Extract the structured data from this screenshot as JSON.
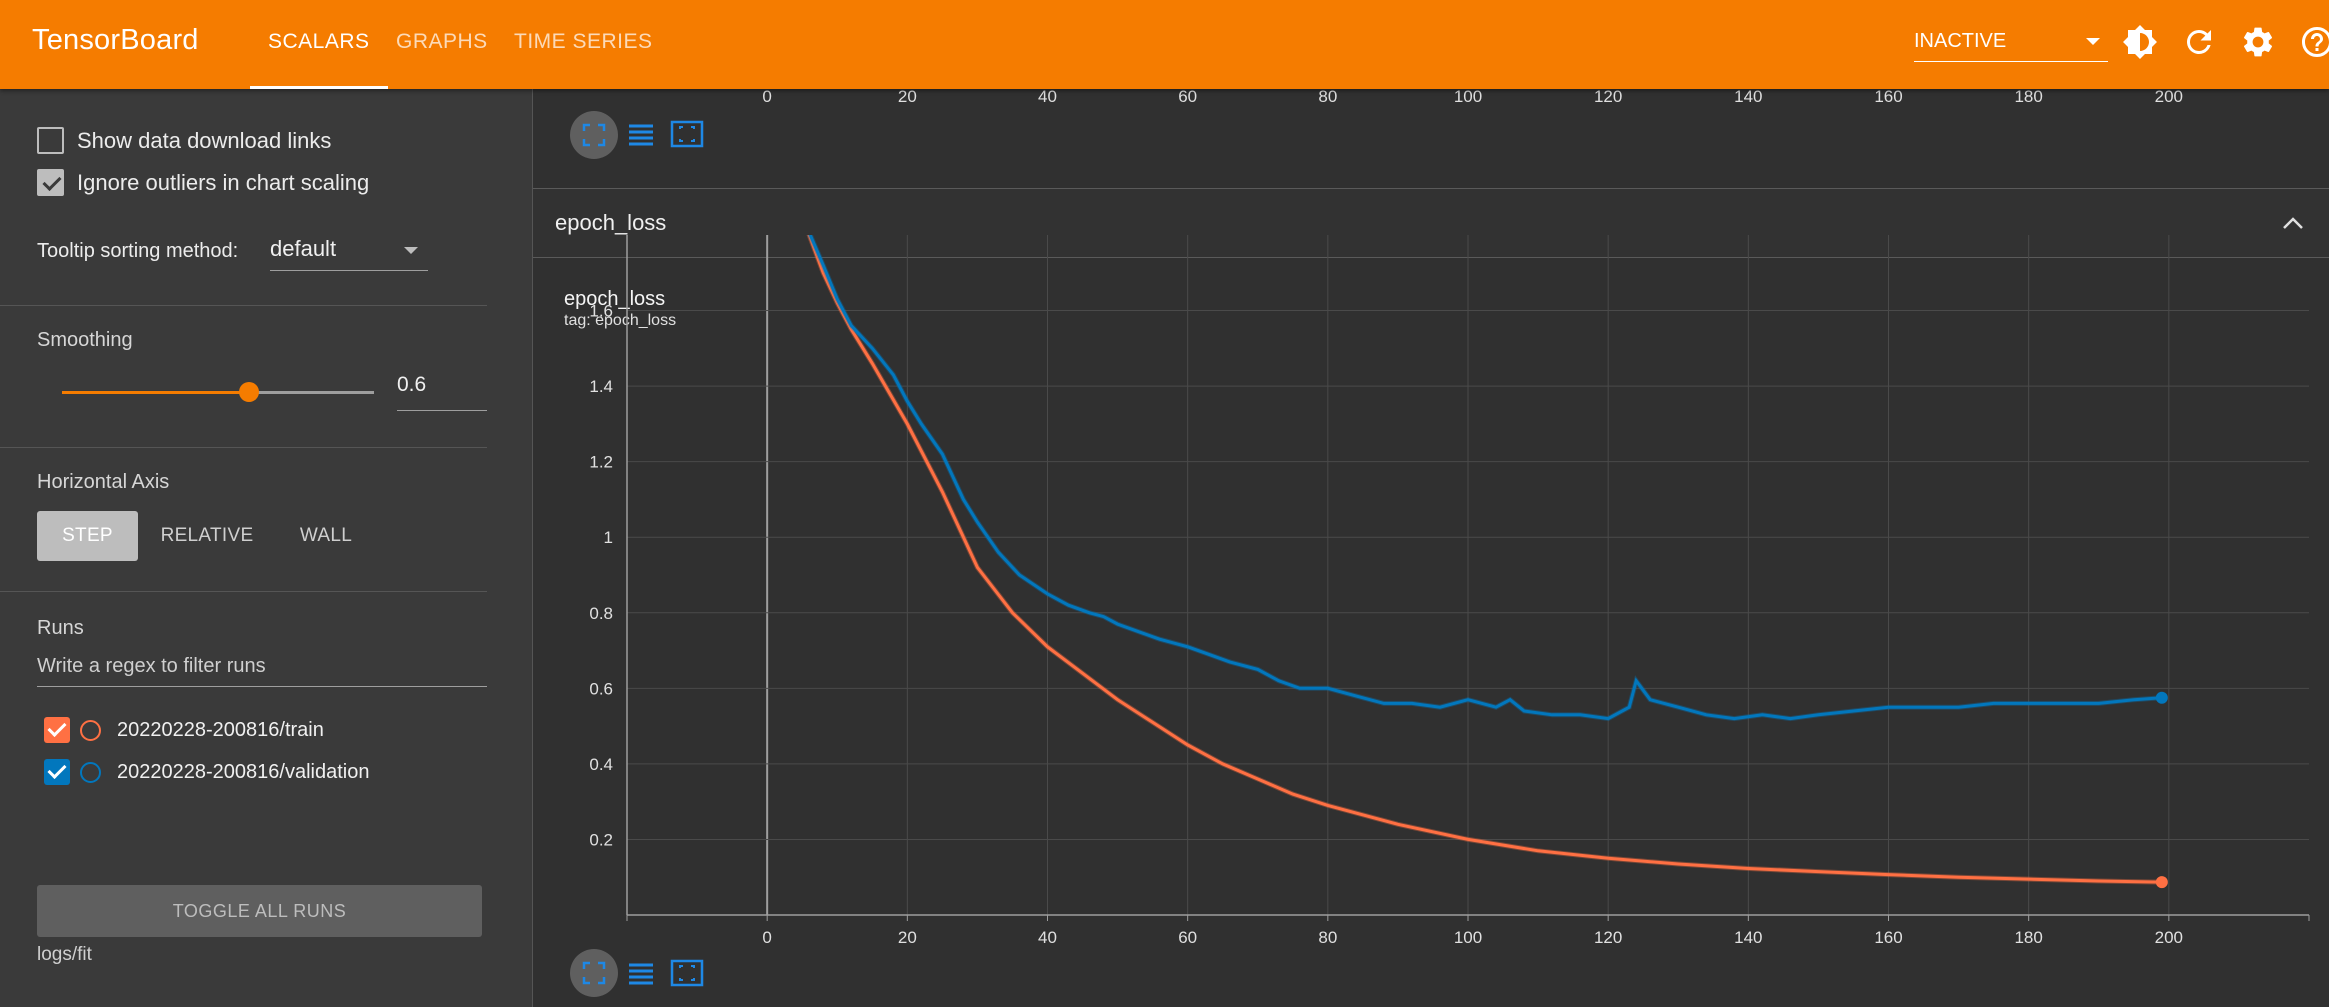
{
  "app": {
    "title": "TensorBoard",
    "nav_tabs": [
      {
        "label": "SCALARS",
        "active": true
      },
      {
        "label": "GRAPHS",
        "active": false
      },
      {
        "label": "TIME SERIES",
        "active": false
      }
    ],
    "status_select": "INACTIVE",
    "accent_color": "#f57c00",
    "icons": [
      "brightness-icon",
      "refresh-icon",
      "settings-icon",
      "help-icon"
    ]
  },
  "sidebar": {
    "show_download_links": {
      "label": "Show data download links",
      "checked": false
    },
    "ignore_outliers": {
      "label": "Ignore outliers in chart scaling",
      "checked": true
    },
    "tooltip_sorting": {
      "label": "Tooltip sorting method:",
      "value": "default"
    },
    "smoothing": {
      "label": "Smoothing",
      "value": "0.6",
      "fraction": 0.6
    },
    "horizontal_axis": {
      "label": "Horizontal Axis",
      "options": [
        {
          "label": "STEP",
          "active": true
        },
        {
          "label": "RELATIVE",
          "active": false
        },
        {
          "label": "WALL",
          "active": false
        }
      ]
    },
    "runs": {
      "label": "Runs",
      "filter_placeholder": "Write a regex to filter runs",
      "items": [
        {
          "label": "20220228-200816/train",
          "color": "#ff7043",
          "checked": true
        },
        {
          "label": "20220228-200816/validation",
          "color": "#0277bd",
          "checked": true
        }
      ],
      "toggle_all_label": "TOGGLE ALL RUNS",
      "log_dir": "logs/fit"
    }
  },
  "main": {
    "top_axis_ticks": [
      "0",
      "20",
      "40",
      "60",
      "80",
      "100",
      "120",
      "140",
      "160",
      "180",
      "200"
    ],
    "card_header": "epoch_loss",
    "chart_title": "epoch_loss",
    "chart_tag": "tag: epoch_loss"
  },
  "chart_data": {
    "type": "line",
    "title": "epoch_loss",
    "xlabel": "",
    "ylabel": "",
    "xlim": [
      -20,
      220
    ],
    "ylim": [
      0,
      1.8
    ],
    "x_ticks": [
      0,
      20,
      40,
      60,
      80,
      100,
      120,
      140,
      160,
      180,
      200
    ],
    "y_ticks": [
      0.2,
      0.4,
      0.6,
      0.8,
      1,
      1.2,
      1.4,
      1.6
    ],
    "grid": true,
    "series": [
      {
        "name": "20220228-200816/train",
        "color": "#ff7043",
        "x": [
          5,
          8,
          10,
          12,
          15,
          20,
          25,
          30,
          35,
          40,
          45,
          50,
          55,
          60,
          65,
          70,
          75,
          80,
          90,
          100,
          110,
          120,
          130,
          140,
          150,
          160,
          170,
          180,
          190,
          199
        ],
        "y": [
          1.85,
          1.7,
          1.62,
          1.55,
          1.46,
          1.3,
          1.12,
          0.92,
          0.8,
          0.71,
          0.64,
          0.57,
          0.51,
          0.45,
          0.4,
          0.36,
          0.32,
          0.29,
          0.24,
          0.2,
          0.17,
          0.15,
          0.135,
          0.123,
          0.115,
          0.107,
          0.1,
          0.095,
          0.09,
          0.087
        ]
      },
      {
        "name": "20220228-200816/validation",
        "color": "#0277bd",
        "x": [
          5,
          8,
          10,
          12,
          15,
          18,
          20,
          22,
          25,
          28,
          30,
          33,
          36,
          40,
          43,
          46,
          48,
          50,
          53,
          56,
          60,
          63,
          66,
          70,
          73,
          76,
          80,
          84,
          88,
          92,
          96,
          100,
          104,
          106,
          108,
          112,
          116,
          120,
          123,
          124,
          126,
          130,
          134,
          138,
          142,
          146,
          150,
          155,
          160,
          165,
          170,
          175,
          180,
          185,
          190,
          195,
          199
        ],
        "y": [
          1.85,
          1.72,
          1.63,
          1.56,
          1.5,
          1.43,
          1.36,
          1.3,
          1.22,
          1.1,
          1.04,
          0.96,
          0.9,
          0.85,
          0.82,
          0.8,
          0.79,
          0.77,
          0.75,
          0.73,
          0.71,
          0.69,
          0.67,
          0.65,
          0.62,
          0.6,
          0.6,
          0.58,
          0.56,
          0.56,
          0.55,
          0.57,
          0.55,
          0.57,
          0.54,
          0.53,
          0.53,
          0.52,
          0.55,
          0.62,
          0.57,
          0.55,
          0.53,
          0.52,
          0.53,
          0.52,
          0.53,
          0.54,
          0.55,
          0.55,
          0.55,
          0.56,
          0.56,
          0.56,
          0.56,
          0.57,
          0.575
        ]
      }
    ]
  }
}
